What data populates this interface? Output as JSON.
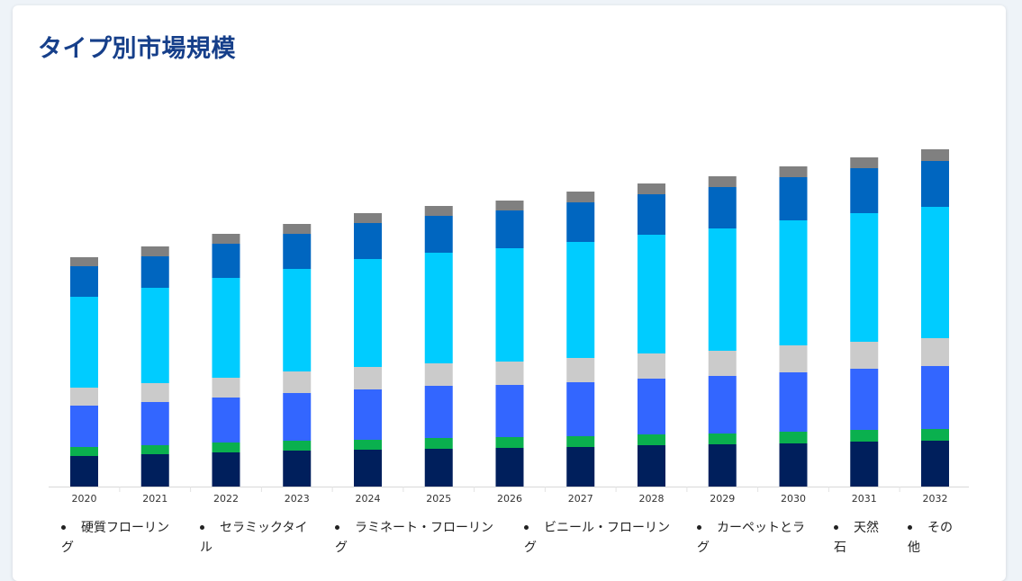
{
  "page": {
    "title": "タイプ別市場規模"
  },
  "colors": {
    "hardwood": "#001f5c",
    "ceramic": "#0ab04e",
    "laminate": "#3366ff",
    "vinyl": "#cbcbcb",
    "carpet": "#00ccff",
    "stone": "#0066c0",
    "other": "#808080"
  },
  "legend": [
    {
      "label": "硬質フローリング"
    },
    {
      "label": "セラミックタイル"
    },
    {
      "label": "ラミネート・フローリング"
    },
    {
      "label": "ビニール・フローリング"
    },
    {
      "label": "カーペットとラグ"
    },
    {
      "label": "天然石"
    },
    {
      "label": "その他"
    }
  ],
  "chart_data": {
    "type": "bar",
    "stacked": true,
    "title": "タイプ別市場規模",
    "categories": [
      "2020",
      "2021",
      "2022",
      "2023",
      "2024",
      "2025",
      "2026",
      "2027",
      "2028",
      "2029",
      "2030",
      "2031",
      "2032"
    ],
    "series": [
      {
        "name": "硬質フローリング",
        "color": "#001f5c",
        "values": [
          34,
          36,
          38,
          40,
          41,
          42,
          43,
          44,
          46,
          47,
          48,
          50,
          51
        ]
      },
      {
        "name": "セラミックタイル",
        "color": "#0ab04e",
        "values": [
          10,
          10,
          11,
          11,
          11,
          12,
          12,
          12,
          12,
          12,
          13,
          13,
          13
        ]
      },
      {
        "name": "ラミネート・フローリング",
        "color": "#3366ff",
        "values": [
          46,
          48,
          50,
          53,
          56,
          58,
          58,
          60,
          62,
          64,
          66,
          68,
          70
        ]
      },
      {
        "name": "ビニール・フローリング",
        "color": "#cbcbcb",
        "values": [
          20,
          21,
          22,
          24,
          25,
          25,
          26,
          27,
          28,
          28,
          30,
          30,
          31
        ]
      },
      {
        "name": "カーペットとラグ",
        "color": "#00ccff",
        "values": [
          101,
          106,
          111,
          114,
          120,
          123,
          126,
          129,
          132,
          136,
          139,
          143,
          146
        ]
      },
      {
        "name": "天然石",
        "color": "#0066c0",
        "values": [
          34,
          35,
          38,
          39,
          40,
          41,
          42,
          44,
          45,
          46,
          48,
          50,
          51
        ]
      },
      {
        "name": "その他",
        "color": "#808080",
        "values": [
          10,
          11,
          11,
          11,
          11,
          11,
          11,
          12,
          12,
          12,
          12,
          12,
          13
        ]
      }
    ],
    "ylim": [
      0,
      380
    ],
    "grid": false,
    "legend_position": "bottom"
  }
}
